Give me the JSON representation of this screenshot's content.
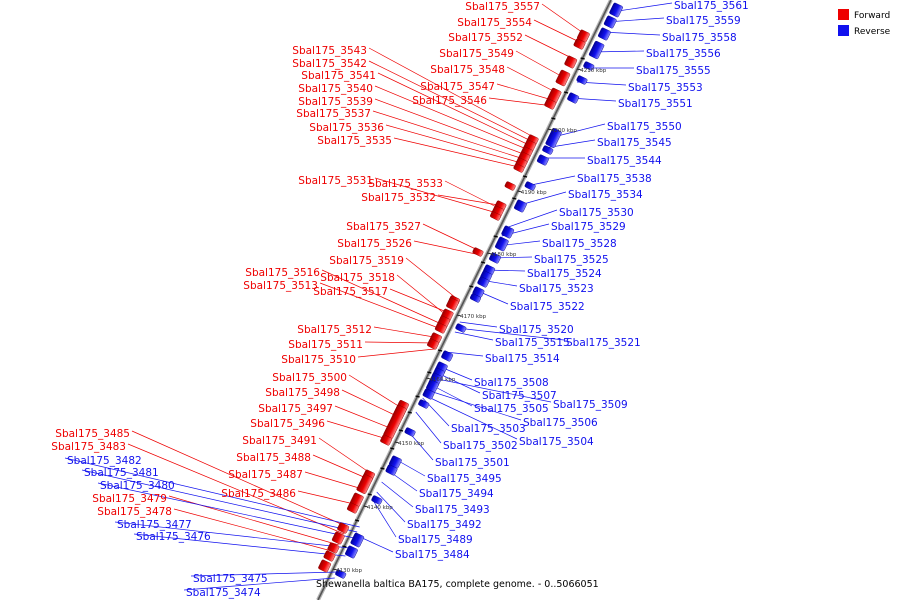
{
  "legend": {
    "forward_label": "Forward",
    "reverse_label": "Reverse",
    "forward_color": "#ee0000",
    "reverse_color": "#1111ee"
  },
  "caption": "Shewanella baltica BA175, complete genome. - 0..5066051",
  "ticks": [
    "4210 kbp",
    "4200 kbp",
    "4190 kbp",
    "4180 kbp",
    "4170 kbp",
    "4160 kbp",
    "4150 kbp",
    "4140 kbp",
    "4130 kbp"
  ],
  "forward_labels": [
    "Sbal175_3557",
    "Sbal175_3554",
    "Sbal175_3552",
    "Sbal175_3549",
    "Sbal175_3548",
    "Sbal175_3547",
    "Sbal175_3546",
    "Sbal175_3543",
    "Sbal175_3542",
    "Sbal175_3541",
    "Sbal175_3540",
    "Sbal175_3539",
    "Sbal175_3537",
    "Sbal175_3536",
    "Sbal175_3535",
    "Sbal175_3531",
    "Sbal175_3533",
    "Sbal175_3532",
    "Sbal175_3527",
    "Sbal175_3526",
    "Sbal175_3519",
    "Sbal175_3516",
    "Sbal175_3518",
    "Sbal175_3513",
    "Sbal175_3517",
    "Sbal175_3512",
    "Sbal175_3511",
    "Sbal175_3510",
    "Sbal175_3500",
    "Sbal175_3498",
    "Sbal175_3497",
    "Sbal175_3496",
    "Sbal175_3491",
    "Sbal175_3488",
    "Sbal175_3487",
    "Sbal175_3486",
    "Sbal175_3485",
    "Sbal175_3483",
    "Sbal175_3479",
    "Sbal175_3478"
  ],
  "reverse_labels": [
    "Sbal175_3561",
    "Sbal175_3559",
    "Sbal175_3558",
    "Sbal175_3556",
    "Sbal175_3555",
    "Sbal175_3553",
    "Sbal175_3551",
    "Sbal175_3550",
    "Sbal175_3545",
    "Sbal175_3544",
    "Sbal175_3538",
    "Sbal175_3534",
    "Sbal175_3530",
    "Sbal175_3529",
    "Sbal175_3528",
    "Sbal175_3525",
    "Sbal175_3524",
    "Sbal175_3523",
    "Sbal175_3522",
    "Sbal175_3520",
    "Sbal175_3515",
    "Sbal175_3521",
    "Sbal175_3514",
    "Sbal175_3508",
    "Sbal175_3507",
    "Sbal175_3509",
    "Sbal175_3505",
    "Sbal175_3506",
    "Sbal175_3503",
    "Sbal175_3504",
    "Sbal175_3502",
    "Sbal175_3501",
    "Sbal175_3495",
    "Sbal175_3494",
    "Sbal175_3493",
    "Sbal175_3492",
    "Sbal175_3489",
    "Sbal175_3484",
    "Sbal175_3482",
    "Sbal175_3481",
    "Sbal175_3480",
    "Sbal175_3477",
    "Sbal175_3476",
    "Sbal175_3475",
    "Sbal175_3474"
  ]
}
